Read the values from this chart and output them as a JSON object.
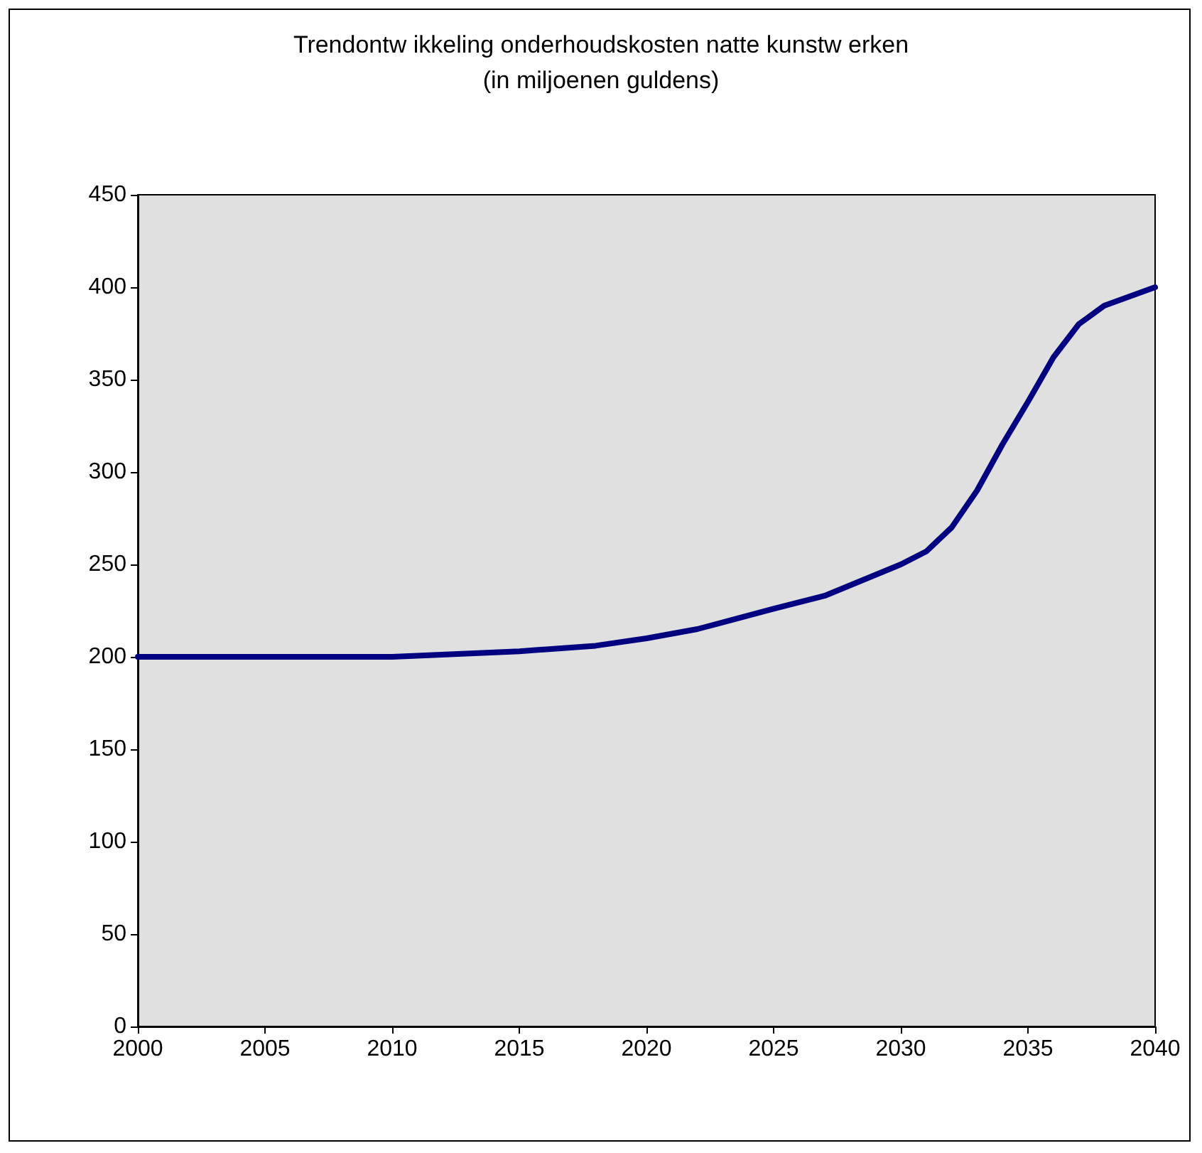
{
  "chart_data": {
    "type": "line",
    "title": "Trendontw ikkeling onderhoudskosten natte kunstw erken",
    "subtitle": "(in miljoenen guldens)",
    "x": [
      2000,
      2005,
      2010,
      2015,
      2018,
      2020,
      2022,
      2025,
      2027,
      2030,
      2031,
      2032,
      2033,
      2034,
      2035,
      2036,
      2037,
      2038,
      2039,
      2040
    ],
    "series": [
      {
        "color": "#000080",
        "values": [
          200,
          200,
          200,
          203,
          206,
          210,
          215,
          226,
          233,
          250,
          257,
          270,
          290,
          315,
          338,
          362,
          380,
          390,
          395,
          400
        ]
      }
    ],
    "xlim": [
      2000,
      2040
    ],
    "xticks": [
      2000,
      2005,
      2010,
      2015,
      2020,
      2025,
      2030,
      2035,
      2040
    ],
    "ylim": [
      0,
      450
    ],
    "yticks": [
      0,
      50,
      100,
      150,
      200,
      250,
      300,
      350,
      400,
      450
    ],
    "marker": "none",
    "line_style": "solid"
  }
}
